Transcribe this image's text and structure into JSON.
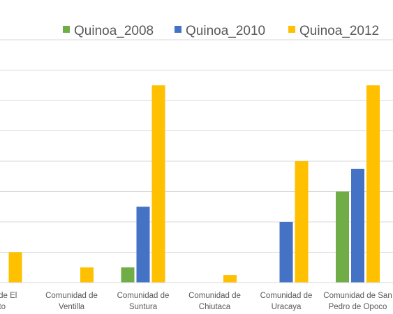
{
  "chart_data": {
    "type": "bar",
    "title": "",
    "xlabel": "",
    "ylabel": "",
    "ylim": [
      0,
      16
    ],
    "grid": true,
    "legend_position": "top-right",
    "categories": [
      [
        "dad de El",
        "nto"
      ],
      [
        "Comunidad de",
        "Ventilla"
      ],
      [
        "Comunidad de",
        "Suntura"
      ],
      [
        "Comunidad de",
        "Chiutaca"
      ],
      [
        "Comunidad de",
        "Uracaya"
      ],
      [
        "Comunidad de San",
        "Pedro de Opoco"
      ]
    ],
    "series": [
      {
        "name": "Quinoa_2008",
        "color": "#70AD47",
        "values": [
          0,
          0,
          1,
          0,
          0,
          6
        ]
      },
      {
        "name": "Quinoa_2010",
        "color": "#4472C4",
        "values": [
          0,
          0,
          5,
          0,
          4,
          7.5
        ]
      },
      {
        "name": "Quinoa_2012",
        "color": "#FFC000",
        "values": [
          2,
          1,
          13,
          0.5,
          8,
          13
        ]
      }
    ]
  }
}
